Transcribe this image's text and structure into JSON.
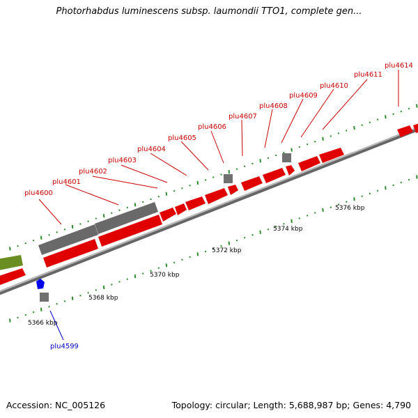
{
  "title": "Photorhabdus luminescens subsp. laumondii TTO1, complete gen...",
  "footer": {
    "accession": "Accession: NC_005126",
    "topology": "Topology: circular;",
    "length": "Length: 5,688,987 bp;",
    "genes": "Genes: 4,790"
  },
  "colors": {
    "red_gene": "#ff0000",
    "gray_gene": "#707070",
    "olive_gene": "#6b8e23",
    "blue_gene": "#0000ff",
    "red_label": "#cc0000",
    "blue_label": "#0000cc",
    "tick": "#2e8b2e",
    "axis": "#888888"
  },
  "scale_labels": [
    "5366 kbp",
    "5368 kbp",
    "5370 kbp",
    "5372 kbp",
    "5374 kbp",
    "5376 kbp"
  ],
  "gene_labels": {
    "upper": [
      "plu4600",
      "plu4601",
      "plu4602",
      "plu4603",
      "plu4604",
      "plu4605",
      "plu4606",
      "plu4607",
      "plu4608",
      "plu4609",
      "plu4610",
      "plu4611",
      "plu4614"
    ],
    "lower": [
      "plu4599"
    ]
  }
}
